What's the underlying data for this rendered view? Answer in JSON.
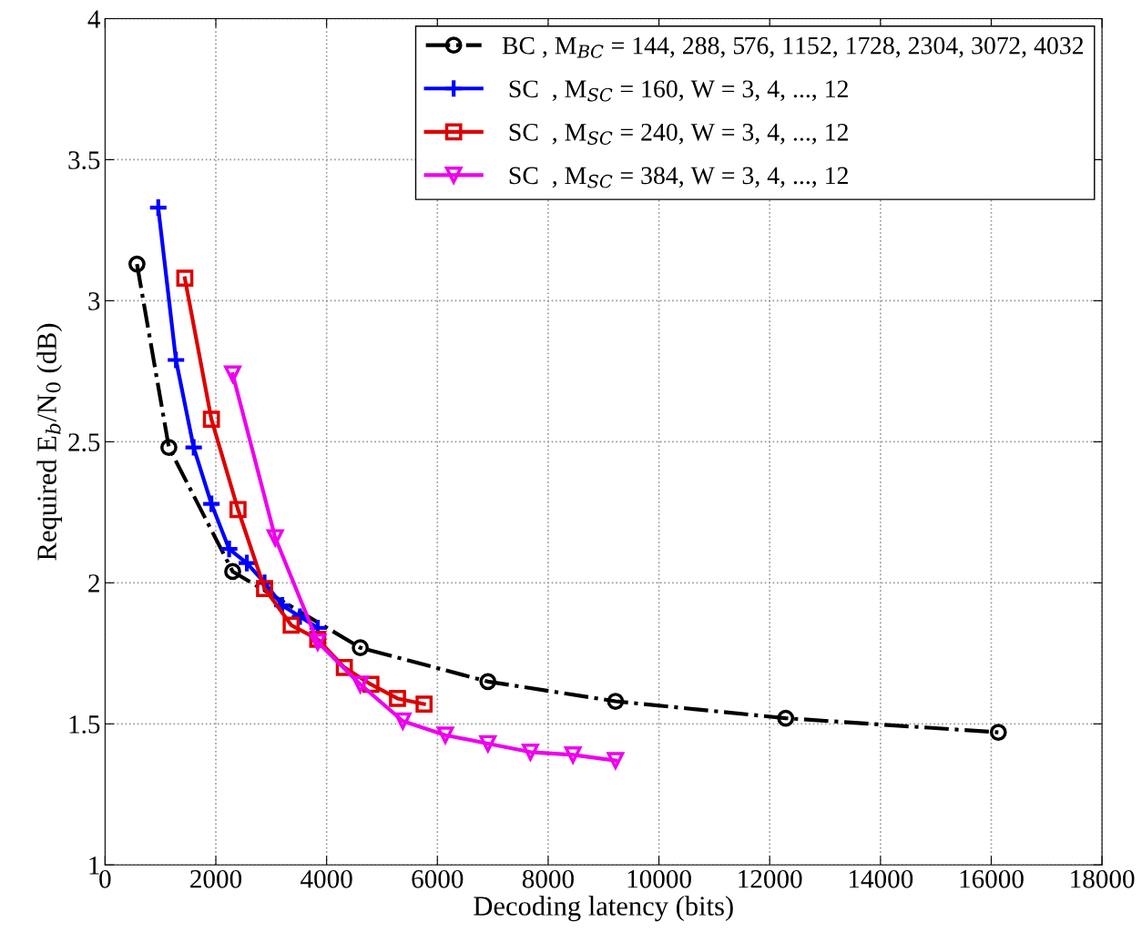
{
  "chart_data": {
    "type": "line",
    "xlabel": "Decoding latency (bits)",
    "ylabel": "Required E$_{b}$/N$_{0}$ (dB)",
    "xlim": [
      0,
      18000
    ],
    "xticks": [
      0,
      2000,
      4000,
      6000,
      8000,
      10000,
      12000,
      14000,
      16000,
      18000
    ],
    "ylim": [
      1,
      4
    ],
    "yticks": [
      1,
      1.5,
      2,
      2.5,
      3,
      3.5,
      4
    ],
    "grid": true,
    "legend": "top right",
    "series": [
      {
        "name": "BC , M$_{BC}$ = 144, 288, 576, 1152, 1728, 2304, 3072, 4032",
        "color": "#000000",
        "marker": "circle",
        "line_style": "dashdot",
        "x": [
          576,
          1152,
          2304,
          4608,
          6912,
          9216,
          12288,
          16128
        ],
        "values": [
          3.13,
          2.48,
          2.04,
          1.77,
          1.65,
          1.58,
          1.52,
          1.47
        ]
      },
      {
        "name": " SC  , M$_{SC}$ = 160, W = 3, 4, ..., 12",
        "color": "#0000ff",
        "marker": "cross",
        "line_style": "solid",
        "x": [
          960,
          1280,
          1600,
          1920,
          2240,
          2560,
          2880,
          3200,
          3520,
          3840
        ],
        "values": [
          3.33,
          2.79,
          2.48,
          2.28,
          2.12,
          2.07,
          2.0,
          1.92,
          1.88,
          1.84
        ]
      },
      {
        "name": " SC  , M$_{SC}$ = 240, W = 3, 4, ..., 12",
        "color": "#dd0000",
        "marker": "square",
        "line_style": "solid",
        "x": [
          1440,
          1920,
          2400,
          2880,
          3360,
          3840,
          4320,
          4800,
          5280,
          5760
        ],
        "values": [
          3.08,
          2.58,
          2.26,
          1.98,
          1.85,
          1.8,
          1.7,
          1.64,
          1.59,
          1.57
        ]
      },
      {
        "name": " SC  , M$_{SC}$ = 384, W = 3, 4, ..., 12",
        "color": "#ee00ee",
        "marker": "triangle",
        "line_style": "solid",
        "x": [
          2304,
          3072,
          3840,
          4608,
          5376,
          6144,
          6912,
          7680,
          8448,
          9216
        ],
        "values": [
          2.74,
          2.16,
          1.79,
          1.64,
          1.51,
          1.46,
          1.43,
          1.4,
          1.39,
          1.37
        ]
      }
    ]
  }
}
